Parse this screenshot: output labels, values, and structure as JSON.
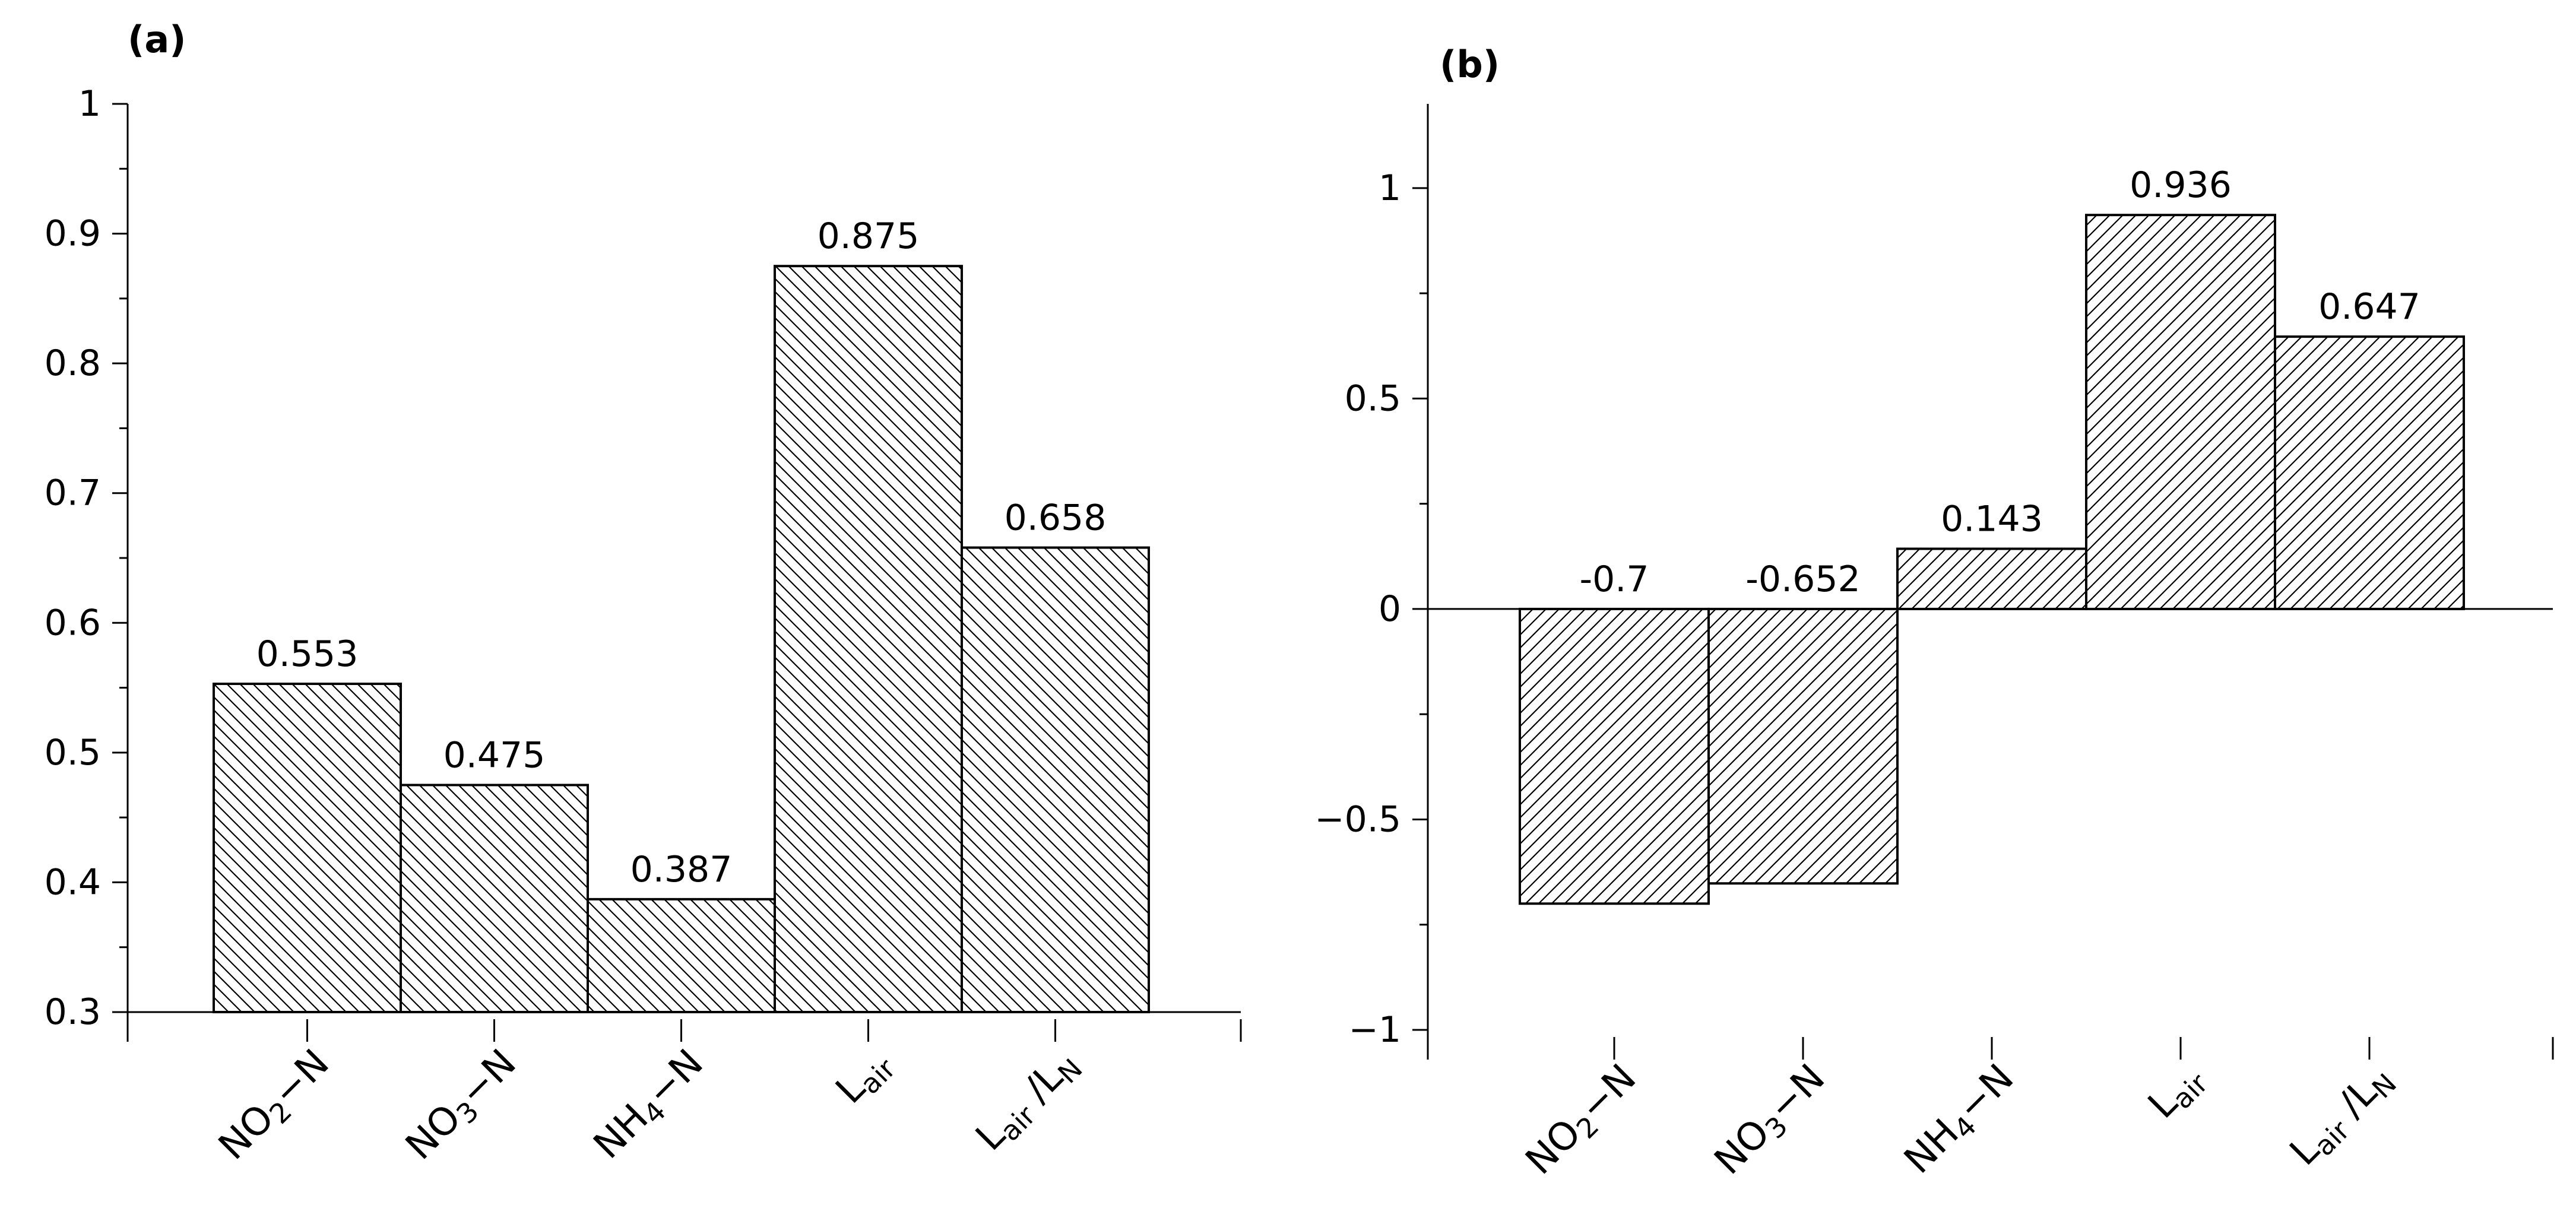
{
  "chart_data": [
    {
      "panel_label": "(a)",
      "type": "bar",
      "categories": [
        {
          "main": "NO",
          "sub": "2",
          "tail": "−N"
        },
        {
          "main": "NO",
          "sub": "3",
          "tail": "−N"
        },
        {
          "main": "NH",
          "sub": "4",
          "tail": "−N"
        },
        {
          "main": "L",
          "sub": "air",
          "tail": ""
        },
        {
          "main": "L",
          "sub": "air",
          "tail": " /L",
          "sub2": "N"
        }
      ],
      "values": [
        0.553,
        0.475,
        0.387,
        0.875,
        0.658
      ],
      "value_labels": [
        "0.553",
        "0.475",
        "0.387",
        "0.875",
        "0.658"
      ],
      "ylim": [
        0.3,
        1.0
      ],
      "yticks": [
        0.3,
        0.4,
        0.5,
        0.6,
        0.7,
        0.8,
        0.9,
        1.0
      ],
      "ytick_labels": [
        "0.3",
        "0.4",
        "0.5",
        "0.6",
        "0.7",
        "0.8",
        "0.9",
        "1"
      ],
      "hatch": "backslash",
      "baseline": 0.3,
      "grid": false
    },
    {
      "panel_label": "(b)",
      "type": "bar",
      "categories": [
        {
          "main": "NO",
          "sub": "2",
          "tail": "−N"
        },
        {
          "main": "NO",
          "sub": "3",
          "tail": "−N"
        },
        {
          "main": "NH",
          "sub": "4",
          "tail": "−N"
        },
        {
          "main": "L",
          "sub": "air",
          "tail": ""
        },
        {
          "main": "L",
          "sub": "air",
          "tail": " /L",
          "sub2": "N"
        }
      ],
      "values": [
        -0.7,
        -0.652,
        0.143,
        0.936,
        0.647
      ],
      "value_labels": [
        "-0.7",
        "-0.652",
        "0.143",
        "0.936",
        "0.647"
      ],
      "ylim": [
        -1.0,
        1.2
      ],
      "yticks": [
        -1.0,
        -0.5,
        0.0,
        0.5,
        1.0
      ],
      "ytick_labels": [
        "−1",
        "−0.5",
        "0",
        "0.5",
        "1"
      ],
      "hatch": "slash",
      "baseline": 0,
      "grid": false
    }
  ]
}
